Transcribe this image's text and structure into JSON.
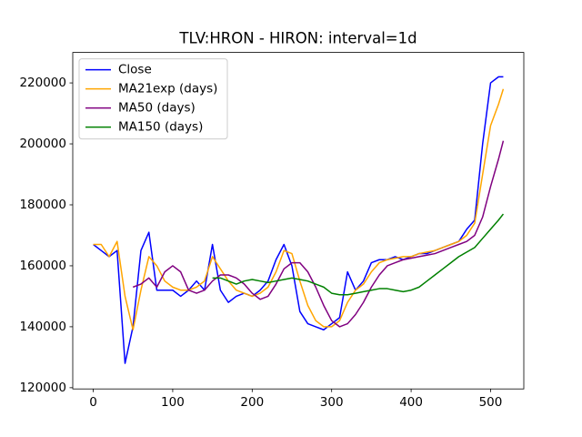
{
  "chart_data": {
    "type": "line",
    "title": "TLV:HRON - HIRON: interval=1d",
    "x": [
      0,
      10,
      20,
      30,
      40,
      50,
      60,
      70,
      80,
      90,
      100,
      110,
      120,
      130,
      140,
      150,
      160,
      170,
      180,
      190,
      200,
      210,
      220,
      230,
      240,
      250,
      260,
      270,
      280,
      290,
      300,
      310,
      320,
      330,
      340,
      350,
      360,
      370,
      380,
      390,
      400,
      410,
      420,
      430,
      440,
      450,
      460,
      470,
      480,
      490,
      500,
      510,
      516
    ],
    "series": [
      {
        "name": "Close",
        "color": "#0000ff",
        "values": [
          167000,
          165000,
          163000,
          165000,
          128000,
          140000,
          165000,
          171000,
          152000,
          152000,
          152000,
          150000,
          152000,
          155000,
          152000,
          167000,
          152000,
          148000,
          150000,
          151000,
          150000,
          152000,
          155000,
          162000,
          167000,
          160000,
          145000,
          141000,
          140000,
          139000,
          141000,
          143000,
          158000,
          152000,
          155000,
          161000,
          162000,
          162000,
          163000,
          162000,
          163000,
          164000,
          164000,
          165000,
          166000,
          167000,
          168000,
          172000,
          175000,
          200000,
          220000,
          222000,
          222000
        ]
      },
      {
        "name": "MA21exp (days)",
        "color": "#ffa500",
        "values": [
          167000,
          167000,
          163000,
          168000,
          150000,
          139000,
          152000,
          163000,
          160000,
          155000,
          153000,
          152000,
          152000,
          153000,
          155000,
          163000,
          159000,
          155000,
          152000,
          151000,
          150000,
          151000,
          153000,
          158000,
          165000,
          164000,
          155000,
          147000,
          142000,
          140000,
          140000,
          142000,
          148000,
          152000,
          154000,
          158000,
          161000,
          162000,
          162500,
          163000,
          163000,
          164000,
          164500,
          165000,
          166000,
          167000,
          168000,
          170000,
          174000,
          190000,
          206000,
          213000,
          218000
        ]
      },
      {
        "name": "MA50 (days)",
        "color": "#800080",
        "values": [
          null,
          null,
          null,
          null,
          null,
          153000,
          154000,
          156000,
          153000,
          158000,
          160000,
          158000,
          152000,
          151000,
          152000,
          155000,
          157000,
          157000,
          156000,
          154000,
          151000,
          149000,
          150000,
          154000,
          159000,
          161000,
          161000,
          158000,
          153000,
          147000,
          142000,
          140000,
          141000,
          144000,
          148000,
          153000,
          157000,
          160000,
          161000,
          162000,
          162500,
          163000,
          163500,
          164000,
          165000,
          166000,
          167000,
          168000,
          170000,
          176000,
          186000,
          195000,
          201000
        ]
      },
      {
        "name": "MA150 (days)",
        "color": "#008000",
        "values": [
          null,
          null,
          null,
          null,
          null,
          null,
          null,
          null,
          null,
          null,
          null,
          null,
          null,
          null,
          null,
          156000,
          156000,
          155000,
          154000,
          155000,
          155500,
          155000,
          154500,
          155000,
          155500,
          156000,
          155500,
          155000,
          154000,
          153000,
          151000,
          150500,
          150500,
          151000,
          151500,
          152000,
          152500,
          152500,
          152000,
          151500,
          152000,
          153000,
          155000,
          157000,
          159000,
          161000,
          163000,
          164500,
          166000,
          169000,
          172000,
          175000,
          177000
        ]
      }
    ],
    "xlim": [
      -25.8,
      541.8
    ],
    "xticks": [
      0,
      100,
      200,
      300,
      400,
      500
    ],
    "ylim": [
      119600,
      230000
    ],
    "yticks": [
      120000,
      140000,
      160000,
      180000,
      200000,
      220000
    ],
    "legend": "upper left"
  }
}
